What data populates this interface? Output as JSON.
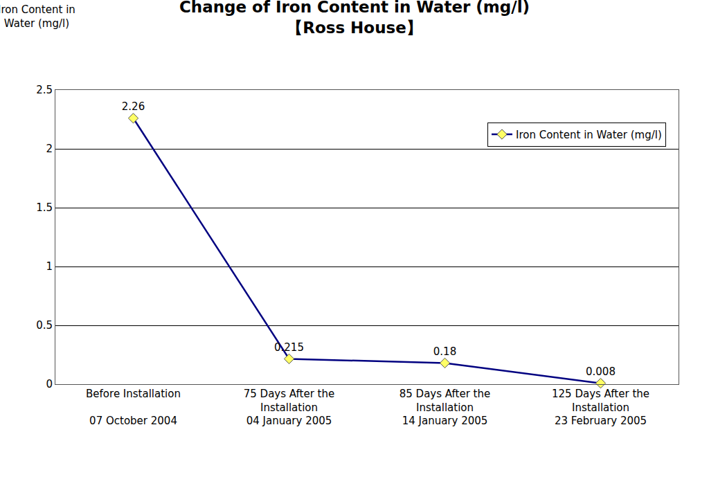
{
  "chart_data": {
    "type": "line",
    "title": "Change of Iron Content in Water (mg/l)\n【Ross House】",
    "y_label": "Iron Content in\nWater (mg/l)",
    "categories": [
      "Before Installation\n\n07 October 2004",
      "75 Days After the\nInstallation\n04 January 2005",
      "85 Days After the\nInstallation\n14 January 2005",
      "125 Days After the\nInstallation\n23 February 2005"
    ],
    "series": [
      {
        "name": "Iron Content in Water (mg/l)",
        "color": "#000080",
        "marker": "diamond",
        "values": [
          2.26,
          0.215,
          0.18,
          0.008
        ]
      }
    ],
    "ylim": [
      0,
      2.5
    ],
    "yticks": [
      0,
      0.5,
      1,
      1.5,
      2,
      2.5
    ],
    "grid": true,
    "legend": "upper right",
    "data_labels": true
  }
}
